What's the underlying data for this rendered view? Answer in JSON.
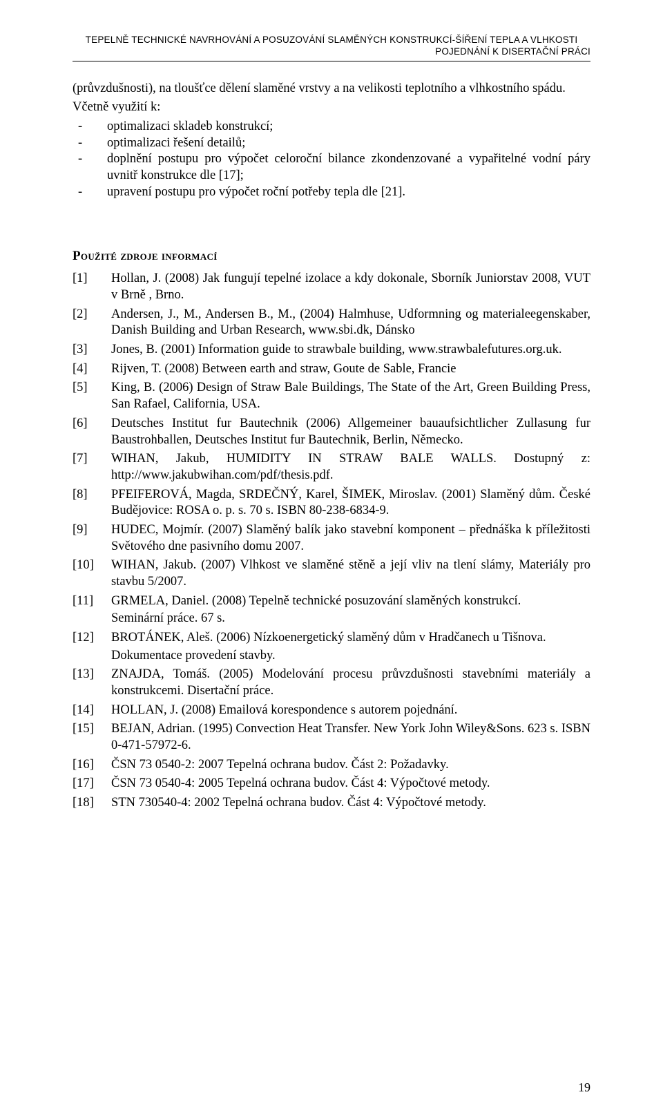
{
  "running_head": {
    "line1": "TEPELNĚ TECHNICKÉ NAVRHOVÁNÍ A POSUZOVÁNÍ SLAMĚNÝCH KONSTRUKCÍ-ŠÍŘENÍ TEPLA A  VLHKOSTI",
    "line2": "POJEDNÁNÍ K DISERTAČNÍ PRÁCI"
  },
  "intro_paragraph": "(průvzdušnosti), na tloušťce dělení slaměné vrstvy a na velikosti teplotního a vlhkostního spádu.",
  "intro_lead": "Včetně využití k:",
  "bullets": [
    "optimalizaci skladeb konstrukcí;",
    "optimalizaci řešení detailů;",
    "doplnění postupu pro výpočet celoroční bilance zkondenzované a vypařitelné vodní páry uvnitř konstrukce dle [17];",
    "upravení postupu pro výpočet roční potřeby tepla dle [21]."
  ],
  "refs_heading": "Použité zdroje informací",
  "refs": [
    {
      "n": "[1]",
      "t": "Hollan, J. (2008) Jak fungují tepelné izolace a kdy dokonale, Sborník Juniorstav 2008, VUT v Brně , Brno."
    },
    {
      "n": "[2]",
      "t": "Andersen, J., M., Andersen B., M., (2004) Halmhuse, Udformning og materialeegenskaber, Danish Building and Urban Research, www.sbi.dk, Dánsko"
    },
    {
      "n": "[3]",
      "t": "Jones, B. (2001) Information guide to strawbale building, www.strawbalefutures.org.uk."
    },
    {
      "n": "[4]",
      "t": "Rijven, T. (2008) Between earth and straw, Goute de Sable, Francie"
    },
    {
      "n": "[5]",
      "t": "King, B. (2006) Design of Straw Bale Buildings, The State of the Art, Green Building Press, San Rafael, California, USA."
    },
    {
      "n": "[6]",
      "t": "Deutsches Institut fur Bautechnik (2006) Allgemeiner bauaufsichtlicher Zullasung fur Baustrohballen,  Deutsches Institut fur Bautechnik, Berlin, Německo."
    },
    {
      "n": "[7]",
      "t": "WIHAN, Jakub, HUMIDITY IN STRAW BALE WALLS. Dostupný z: http://www.jakubwihan.com/pdf/thesis.pdf."
    },
    {
      "n": "[8]",
      "t": "PFEIFEROVÁ, Magda, SRDEČNÝ, Karel, ŠIMEK, Miroslav. (2001) Slaměný dům. České Budějovice: ROSA o. p. s. 70 s. ISBN 80-238-6834-9."
    },
    {
      "n": "[9]",
      "t": "HUDEC, Mojmír. (2007) Slaměný balík jako stavební komponent – přednáška k příležitosti Světového dne pasivního domu 2007."
    },
    {
      "n": "[10]",
      "t": "WIHAN, Jakub. (2007) Vlhkost ve slaměné stěně a její vliv na tlení slámy, Materiály pro stavbu 5/2007."
    },
    {
      "n": "[11]",
      "t": "GRMELA, Daniel. (2008) Tepelně technické posuzování slaměných konstrukcí.",
      "s": "Seminární práce. 67 s."
    },
    {
      "n": "[12]",
      "t": "BROTÁNEK, Aleš. (2006) Nízkoenergetický slaměný dům v Hradčanech u Tišnova.",
      "s": "Dokumentace provedení stavby."
    },
    {
      "n": "[13]",
      "t": "ZNAJDA, Tomáš. (2005) Modelování procesu průvzdušnosti stavebními materiály a konstrukcemi. Disertační práce."
    },
    {
      "n": "[14]",
      "t": "HOLLAN, J. (2008) Emailová korespondence s autorem pojednání."
    },
    {
      "n": "[15]",
      "t": "BEJAN, Adrian. (1995) Convection Heat Transfer. New York John Wiley&Sons. 623 s. ISBN 0-471-57972-6."
    },
    {
      "n": "[16]",
      "t": "ČSN 73 0540-2: 2007  Tepelná ochrana budov. Část 2: Požadavky."
    },
    {
      "n": "[17]",
      "t": "ČSN 73 0540-4: 2005 Tepelná ochrana budov. Část 4: Výpočtové metody."
    },
    {
      "n": "[18]",
      "t": "STN 730540-4: 2002 Tepelná ochrana budov. Část 4: Výpočtové metody."
    }
  ],
  "page_number": "19"
}
